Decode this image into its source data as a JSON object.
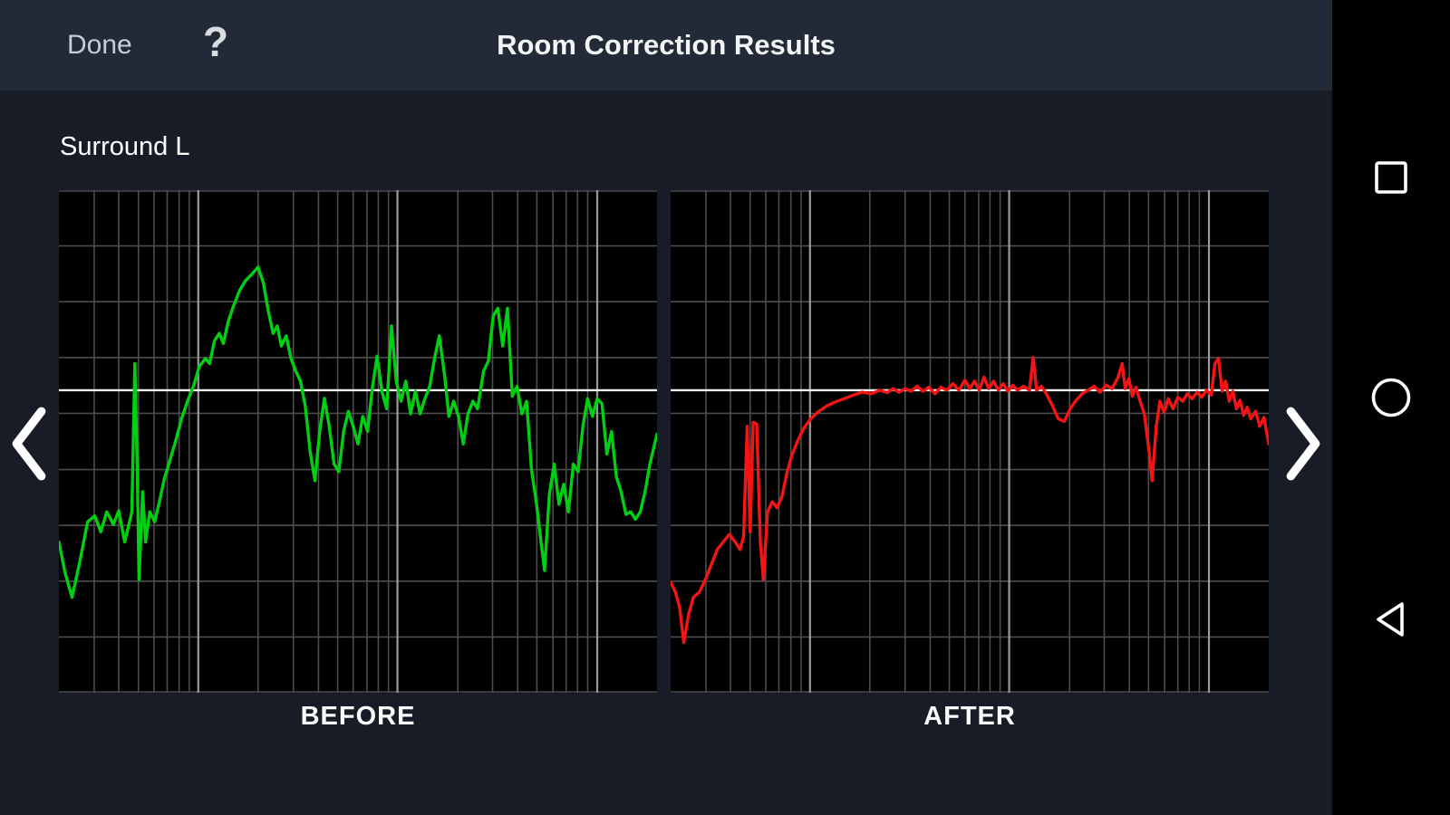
{
  "app_bar": {
    "done_label": "Done",
    "help_label": "?",
    "title": "Room Correction Results"
  },
  "channel_label": "Surround L",
  "colors": {
    "chart_background": "#000000",
    "grid_minor": "#4d4d4d",
    "grid_major": "#9a9a9a",
    "reference_line": "#f4f4f4",
    "before_line": "#00cf12",
    "after_line": "#f41414"
  },
  "chart_grid": {
    "vertical_major": [
      0.233,
      0.566,
      0.9
    ],
    "vertical_minor": [
      0.059,
      0.1,
      0.133,
      0.159,
      0.181,
      0.201,
      0.218,
      0.333,
      0.392,
      0.434,
      0.466,
      0.492,
      0.515,
      0.534,
      0.551,
      0.667,
      0.725,
      0.767,
      0.799,
      0.826,
      0.848,
      0.867,
      0.884
    ],
    "horizontal": [
      0.0,
      0.111,
      0.222,
      0.333,
      0.444,
      0.556,
      0.667,
      0.778,
      0.889,
      1.0
    ],
    "reference_y": 0.398
  },
  "chart_data": [
    {
      "type": "line",
      "title": "BEFORE",
      "series": "Surround L measured response (uncorrected)",
      "color": "#00cf12",
      "x_axis": "frequency, log scale (unlabeled)",
      "y_axis": "level (unlabeled)",
      "points_normalized": [
        [
          0.0,
          0.7
        ],
        [
          0.01,
          0.76
        ],
        [
          0.022,
          0.81
        ],
        [
          0.034,
          0.745
        ],
        [
          0.048,
          0.66
        ],
        [
          0.06,
          0.648
        ],
        [
          0.07,
          0.68
        ],
        [
          0.08,
          0.64
        ],
        [
          0.091,
          0.665
        ],
        [
          0.1,
          0.638
        ],
        [
          0.11,
          0.7
        ],
        [
          0.118,
          0.66
        ],
        [
          0.122,
          0.64
        ],
        [
          0.127,
          0.345
        ],
        [
          0.131,
          0.56
        ],
        [
          0.134,
          0.775
        ],
        [
          0.14,
          0.6
        ],
        [
          0.145,
          0.7
        ],
        [
          0.152,
          0.64
        ],
        [
          0.16,
          0.66
        ],
        [
          0.168,
          0.62
        ],
        [
          0.176,
          0.575
        ],
        [
          0.185,
          0.54
        ],
        [
          0.195,
          0.5
        ],
        [
          0.205,
          0.455
        ],
        [
          0.215,
          0.42
        ],
        [
          0.225,
          0.39
        ],
        [
          0.235,
          0.35
        ],
        [
          0.245,
          0.335
        ],
        [
          0.252,
          0.345
        ],
        [
          0.26,
          0.3
        ],
        [
          0.268,
          0.285
        ],
        [
          0.275,
          0.305
        ],
        [
          0.283,
          0.262
        ],
        [
          0.292,
          0.23
        ],
        [
          0.302,
          0.2
        ],
        [
          0.312,
          0.18
        ],
        [
          0.322,
          0.168
        ],
        [
          0.333,
          0.153
        ],
        [
          0.342,
          0.185
        ],
        [
          0.35,
          0.24
        ],
        [
          0.358,
          0.285
        ],
        [
          0.365,
          0.27
        ],
        [
          0.372,
          0.31
        ],
        [
          0.38,
          0.29
        ],
        [
          0.388,
          0.335
        ],
        [
          0.396,
          0.36
        ],
        [
          0.404,
          0.38
        ],
        [
          0.412,
          0.43
        ],
        [
          0.42,
          0.52
        ],
        [
          0.428,
          0.578
        ],
        [
          0.436,
          0.48
        ],
        [
          0.444,
          0.414
        ],
        [
          0.452,
          0.47
        ],
        [
          0.46,
          0.545
        ],
        [
          0.468,
          0.56
        ],
        [
          0.476,
          0.48
        ],
        [
          0.484,
          0.44
        ],
        [
          0.492,
          0.47
        ],
        [
          0.5,
          0.505
        ],
        [
          0.508,
          0.45
        ],
        [
          0.516,
          0.48
        ],
        [
          0.524,
          0.395
        ],
        [
          0.532,
          0.33
        ],
        [
          0.54,
          0.4
        ],
        [
          0.548,
          0.435
        ],
        [
          0.556,
          0.27
        ],
        [
          0.564,
          0.38
        ],
        [
          0.572,
          0.42
        ],
        [
          0.58,
          0.38
        ],
        [
          0.588,
          0.445
        ],
        [
          0.596,
          0.4
        ],
        [
          0.604,
          0.445
        ],
        [
          0.612,
          0.415
        ],
        [
          0.62,
          0.39
        ],
        [
          0.628,
          0.335
        ],
        [
          0.636,
          0.29
        ],
        [
          0.645,
          0.37
        ],
        [
          0.652,
          0.45
        ],
        [
          0.66,
          0.42
        ],
        [
          0.668,
          0.45
        ],
        [
          0.676,
          0.505
        ],
        [
          0.684,
          0.445
        ],
        [
          0.692,
          0.42
        ],
        [
          0.7,
          0.435
        ],
        [
          0.71,
          0.36
        ],
        [
          0.718,
          0.34
        ],
        [
          0.726,
          0.25
        ],
        [
          0.734,
          0.235
        ],
        [
          0.742,
          0.31
        ],
        [
          0.75,
          0.235
        ],
        [
          0.758,
          0.41
        ],
        [
          0.766,
          0.39
        ],
        [
          0.774,
          0.445
        ],
        [
          0.782,
          0.42
        ],
        [
          0.79,
          0.555
        ],
        [
          0.798,
          0.62
        ],
        [
          0.806,
          0.7
        ],
        [
          0.812,
          0.757
        ],
        [
          0.82,
          0.605
        ],
        [
          0.828,
          0.545
        ],
        [
          0.836,
          0.625
        ],
        [
          0.844,
          0.585
        ],
        [
          0.852,
          0.64
        ],
        [
          0.86,
          0.545
        ],
        [
          0.868,
          0.56
        ],
        [
          0.876,
          0.47
        ],
        [
          0.884,
          0.415
        ],
        [
          0.892,
          0.45
        ],
        [
          0.9,
          0.415
        ],
        [
          0.908,
          0.425
        ],
        [
          0.916,
          0.525
        ],
        [
          0.924,
          0.48
        ],
        [
          0.932,
          0.57
        ],
        [
          0.94,
          0.6
        ],
        [
          0.948,
          0.645
        ],
        [
          0.956,
          0.64
        ],
        [
          0.964,
          0.655
        ],
        [
          0.972,
          0.64
        ],
        [
          0.98,
          0.6
        ],
        [
          0.988,
          0.545
        ],
        [
          1.0,
          0.485
        ]
      ]
    },
    {
      "type": "line",
      "title": "AFTER",
      "series": "Surround L corrected response",
      "color": "#f41414",
      "x_axis": "frequency, log scale (unlabeled)",
      "y_axis": "level (unlabeled)",
      "points_normalized": [
        [
          0.0,
          0.78
        ],
        [
          0.008,
          0.8
        ],
        [
          0.015,
          0.83
        ],
        [
          0.022,
          0.9
        ],
        [
          0.03,
          0.845
        ],
        [
          0.038,
          0.81
        ],
        [
          0.048,
          0.8
        ],
        [
          0.058,
          0.775
        ],
        [
          0.068,
          0.745
        ],
        [
          0.078,
          0.715
        ],
        [
          0.088,
          0.7
        ],
        [
          0.098,
          0.685
        ],
        [
          0.108,
          0.7
        ],
        [
          0.116,
          0.715
        ],
        [
          0.122,
          0.69
        ],
        [
          0.128,
          0.47
        ],
        [
          0.133,
          0.68
        ],
        [
          0.138,
          0.462
        ],
        [
          0.144,
          0.465
        ],
        [
          0.15,
          0.7
        ],
        [
          0.155,
          0.775
        ],
        [
          0.162,
          0.64
        ],
        [
          0.17,
          0.62
        ],
        [
          0.178,
          0.632
        ],
        [
          0.186,
          0.61
        ],
        [
          0.194,
          0.565
        ],
        [
          0.202,
          0.53
        ],
        [
          0.212,
          0.5
        ],
        [
          0.222,
          0.475
        ],
        [
          0.234,
          0.455
        ],
        [
          0.246,
          0.442
        ],
        [
          0.26,
          0.43
        ],
        [
          0.274,
          0.422
        ],
        [
          0.29,
          0.415
        ],
        [
          0.305,
          0.408
        ],
        [
          0.32,
          0.402
        ],
        [
          0.335,
          0.405
        ],
        [
          0.35,
          0.398
        ],
        [
          0.362,
          0.403
        ],
        [
          0.372,
          0.395
        ],
        [
          0.382,
          0.402
        ],
        [
          0.392,
          0.395
        ],
        [
          0.402,
          0.4
        ],
        [
          0.412,
          0.39
        ],
        [
          0.422,
          0.4
        ],
        [
          0.432,
          0.392
        ],
        [
          0.442,
          0.405
        ],
        [
          0.452,
          0.392
        ],
        [
          0.462,
          0.398
        ],
        [
          0.472,
          0.385
        ],
        [
          0.482,
          0.398
        ],
        [
          0.492,
          0.378
        ],
        [
          0.5,
          0.395
        ],
        [
          0.508,
          0.38
        ],
        [
          0.516,
          0.398
        ],
        [
          0.524,
          0.372
        ],
        [
          0.532,
          0.395
        ],
        [
          0.54,
          0.38
        ],
        [
          0.548,
          0.398
        ],
        [
          0.556,
          0.385
        ],
        [
          0.564,
          0.4
        ],
        [
          0.572,
          0.388
        ],
        [
          0.58,
          0.398
        ],
        [
          0.59,
          0.39
        ],
        [
          0.6,
          0.398
        ],
        [
          0.606,
          0.333
        ],
        [
          0.612,
          0.398
        ],
        [
          0.62,
          0.39
        ],
        [
          0.628,
          0.405
        ],
        [
          0.638,
          0.428
        ],
        [
          0.648,
          0.455
        ],
        [
          0.658,
          0.46
        ],
        [
          0.668,
          0.435
        ],
        [
          0.678,
          0.418
        ],
        [
          0.688,
          0.405
        ],
        [
          0.698,
          0.398
        ],
        [
          0.708,
          0.39
        ],
        [
          0.718,
          0.402
        ],
        [
          0.728,
          0.388
        ],
        [
          0.738,
          0.395
        ],
        [
          0.748,
          0.372
        ],
        [
          0.755,
          0.345
        ],
        [
          0.76,
          0.395
        ],
        [
          0.766,
          0.375
        ],
        [
          0.772,
          0.41
        ],
        [
          0.778,
          0.392
        ],
        [
          0.785,
          0.42
        ],
        [
          0.792,
          0.445
        ],
        [
          0.8,
          0.52
        ],
        [
          0.805,
          0.578
        ],
        [
          0.812,
          0.47
        ],
        [
          0.818,
          0.42
        ],
        [
          0.825,
          0.442
        ],
        [
          0.832,
          0.415
        ],
        [
          0.84,
          0.435
        ],
        [
          0.848,
          0.412
        ],
        [
          0.856,
          0.42
        ],
        [
          0.864,
          0.405
        ],
        [
          0.872,
          0.415
        ],
        [
          0.88,
          0.402
        ],
        [
          0.888,
          0.412
        ],
        [
          0.896,
          0.398
        ],
        [
          0.904,
          0.408
        ],
        [
          0.91,
          0.345
        ],
        [
          0.916,
          0.335
        ],
        [
          0.922,
          0.4
        ],
        [
          0.928,
          0.38
        ],
        [
          0.934,
          0.42
        ],
        [
          0.94,
          0.4
        ],
        [
          0.946,
          0.435
        ],
        [
          0.952,
          0.418
        ],
        [
          0.958,
          0.448
        ],
        [
          0.964,
          0.432
        ],
        [
          0.97,
          0.455
        ],
        [
          0.978,
          0.44
        ],
        [
          0.985,
          0.47
        ],
        [
          0.992,
          0.452
        ],
        [
          1.0,
          0.505
        ]
      ]
    }
  ]
}
